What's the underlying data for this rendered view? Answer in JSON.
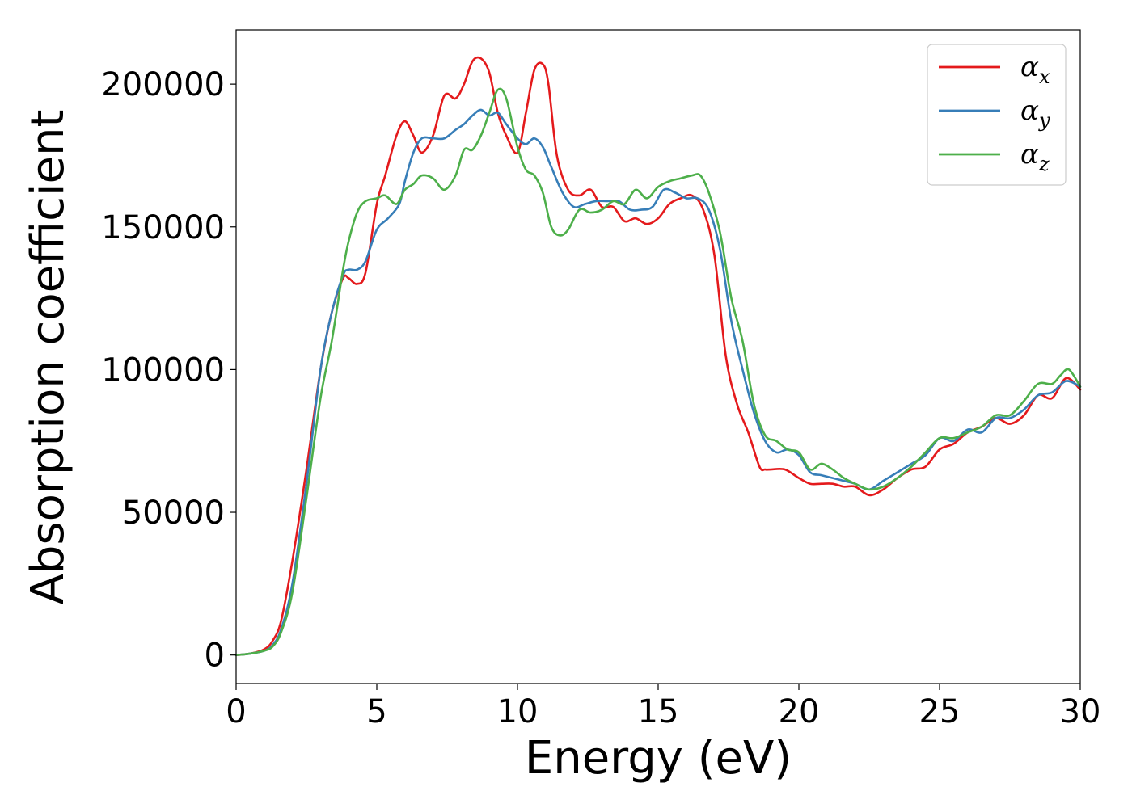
{
  "chart_data": {
    "type": "line",
    "title": "",
    "xlabel": "Energy (eV)",
    "ylabel": "Absorption coefficient",
    "xlim": [
      0,
      30
    ],
    "ylim": [
      -10000,
      219000
    ],
    "xticks": [
      0,
      5,
      10,
      15,
      20,
      25,
      30
    ],
    "xtick_labels": [
      "0",
      "5",
      "10",
      "15",
      "20",
      "25",
      "30"
    ],
    "yticks": [
      0,
      50000,
      100000,
      150000,
      200000
    ],
    "ytick_labels": [
      "0",
      "50000",
      "100000",
      "150000",
      "200000"
    ],
    "grid": false,
    "legend_position": "top-right",
    "series": [
      {
        "name": "α_x",
        "legend_main": "α",
        "legend_sub": "x",
        "color": "#e41a1c",
        "x": [
          0,
          0.5,
          1.0,
          1.3,
          1.6,
          2.0,
          2.5,
          3.0,
          3.4,
          3.8,
          4.0,
          4.3,
          4.6,
          5.0,
          5.3,
          5.7,
          6.0,
          6.3,
          6.6,
          7.0,
          7.4,
          7.8,
          8.1,
          8.4,
          8.7,
          9.0,
          9.3,
          9.6,
          10.0,
          10.3,
          10.6,
          10.9,
          11.1,
          11.4,
          11.8,
          12.2,
          12.6,
          13.0,
          13.4,
          13.8,
          14.2,
          14.6,
          15.0,
          15.4,
          15.8,
          16.2,
          16.6,
          17.0,
          17.4,
          17.8,
          18.2,
          18.6,
          18.8,
          19.0,
          19.5,
          20.0,
          20.4,
          20.8,
          21.2,
          21.6,
          22.0,
          22.5,
          23.0,
          23.5,
          24.0,
          24.5,
          25.0,
          25.5,
          26.0,
          26.5,
          27.0,
          27.5,
          28.0,
          28.5,
          29.0,
          29.5,
          30.0
        ],
        "y": [
          0,
          500,
          2000,
          5000,
          12000,
          33000,
          65000,
          100000,
          120000,
          132000,
          132000,
          130000,
          134000,
          158000,
          168000,
          182000,
          187000,
          182000,
          176000,
          182000,
          196000,
          195000,
          200000,
          208000,
          209000,
          204000,
          190000,
          182000,
          176000,
          190000,
          205000,
          207000,
          200000,
          175000,
          163000,
          161000,
          163000,
          157000,
          157000,
          152000,
          153000,
          151000,
          153000,
          158000,
          160000,
          161000,
          156000,
          140000,
          105000,
          88000,
          78000,
          66000,
          65000,
          65000,
          65000,
          62000,
          60000,
          60000,
          60000,
          59000,
          59000,
          56000,
          58000,
          62000,
          65000,
          66000,
          72000,
          74000,
          78000,
          80000,
          83000,
          81000,
          84000,
          91000,
          90000,
          97000,
          93000
        ]
      },
      {
        "name": "α_y",
        "legend_main": "α",
        "legend_sub": "y",
        "color": "#377eb8",
        "x": [
          0,
          0.5,
          1.0,
          1.3,
          1.6,
          2.0,
          2.5,
          3.0,
          3.4,
          3.8,
          4.0,
          4.3,
          4.6,
          5.0,
          5.4,
          5.8,
          6.0,
          6.3,
          6.6,
          7.0,
          7.4,
          7.8,
          8.1,
          8.4,
          8.7,
          9.0,
          9.3,
          9.6,
          10.0,
          10.3,
          10.6,
          10.9,
          11.2,
          11.6,
          12.0,
          12.4,
          12.8,
          13.2,
          13.6,
          14.0,
          14.4,
          14.8,
          15.2,
          15.6,
          16.0,
          16.4,
          16.8,
          17.2,
          17.6,
          18.0,
          18.4,
          18.8,
          19.2,
          19.6,
          20.0,
          20.4,
          20.8,
          21.2,
          21.6,
          22.0,
          22.5,
          23.0,
          23.5,
          24.0,
          24.5,
          25.0,
          25.5,
          26.0,
          26.5,
          27.0,
          27.5,
          28.0,
          28.5,
          29.0,
          29.5,
          30.0
        ],
        "y": [
          0,
          500,
          1500,
          3500,
          9000,
          25000,
          60000,
          100000,
          120000,
          133000,
          135000,
          135000,
          138000,
          149000,
          153000,
          158000,
          166000,
          176000,
          181000,
          181000,
          181000,
          184000,
          186000,
          189000,
          191000,
          189000,
          190000,
          186000,
          181000,
          179000,
          181000,
          178000,
          171000,
          162000,
          157000,
          158000,
          159000,
          159000,
          159000,
          156000,
          156000,
          157000,
          163000,
          162000,
          160000,
          160000,
          156000,
          142000,
          117000,
          100000,
          85000,
          75000,
          71000,
          72000,
          70000,
          64000,
          63000,
          62000,
          61000,
          60000,
          58000,
          61000,
          64000,
          67000,
          70000,
          76000,
          75000,
          79000,
          78000,
          83000,
          83000,
          86000,
          91000,
          92000,
          96000,
          94000
        ]
      },
      {
        "name": "α_z",
        "legend_main": "α",
        "legend_sub": "z",
        "color": "#4daf4a",
        "x": [
          0,
          0.5,
          1.0,
          1.3,
          1.6,
          2.0,
          2.5,
          3.0,
          3.4,
          3.8,
          4.0,
          4.3,
          4.6,
          5.0,
          5.3,
          5.7,
          6.0,
          6.3,
          6.6,
          7.0,
          7.4,
          7.8,
          8.1,
          8.4,
          8.7,
          9.0,
          9.3,
          9.6,
          10.0,
          10.3,
          10.6,
          10.9,
          11.2,
          11.5,
          11.8,
          12.2,
          12.6,
          13.0,
          13.4,
          13.8,
          14.2,
          14.6,
          15.0,
          15.4,
          15.8,
          16.2,
          16.5,
          16.8,
          17.2,
          17.6,
          18.0,
          18.4,
          18.8,
          19.2,
          19.6,
          20.0,
          20.4,
          20.8,
          21.2,
          21.6,
          22.0,
          22.5,
          23.0,
          23.5,
          24.0,
          24.5,
          25.0,
          25.5,
          26.0,
          26.5,
          27.0,
          27.5,
          28.0,
          28.5,
          29.0,
          29.3,
          29.6,
          30.0
        ],
        "y": [
          0,
          500,
          1500,
          3000,
          8000,
          22000,
          55000,
          90000,
          110000,
          135000,
          145000,
          155000,
          159000,
          160000,
          161000,
          158000,
          163000,
          165000,
          168000,
          167000,
          163000,
          168000,
          177000,
          177000,
          182000,
          190000,
          198000,
          195000,
          178000,
          170000,
          168000,
          162000,
          150000,
          147000,
          149000,
          156000,
          155000,
          156000,
          159000,
          158000,
          163000,
          160000,
          164000,
          166000,
          167000,
          168000,
          168000,
          162000,
          148000,
          125000,
          110000,
          88000,
          77000,
          75000,
          72000,
          71000,
          65000,
          67000,
          65000,
          62000,
          60000,
          58000,
          59000,
          62000,
          66000,
          71000,
          76000,
          76000,
          78000,
          80000,
          84000,
          84000,
          89000,
          95000,
          95000,
          98000,
          100000,
          94000
        ]
      }
    ]
  }
}
